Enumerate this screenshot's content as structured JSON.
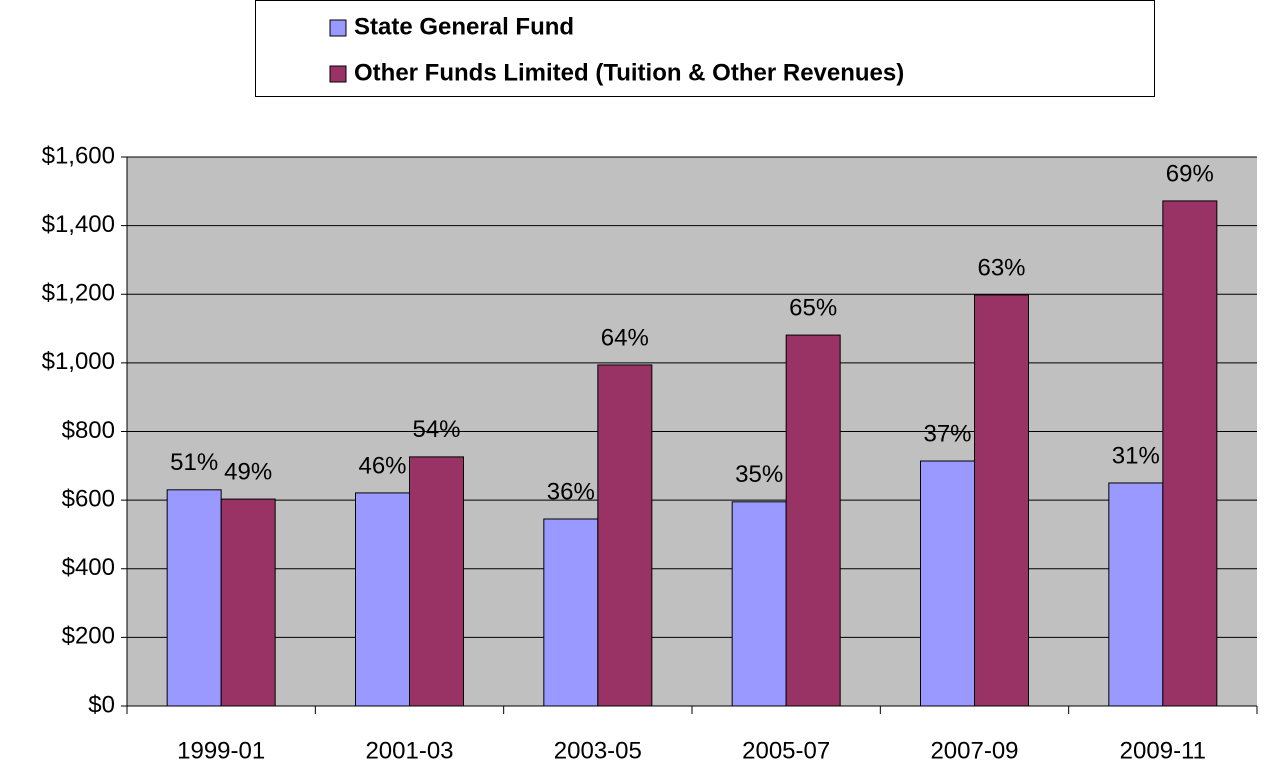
{
  "chart_data": {
    "type": "bar",
    "categories": [
      "1999-01",
      "2001-03",
      "2003-05",
      "2005-07",
      "2007-09",
      "2009-11"
    ],
    "series": [
      {
        "name": "State General Fund",
        "color": "#9999ff",
        "values": [
          630,
          621,
          545,
          595,
          714,
          650
        ],
        "labels": [
          "51%",
          "46%",
          "36%",
          "35%",
          "37%",
          "31%"
        ]
      },
      {
        "name": "Other Funds Limited (Tuition & Other Revenues)",
        "color": "#993366",
        "values": [
          603,
          726,
          994,
          1081,
          1198,
          1472
        ],
        "labels": [
          "49%",
          "54%",
          "64%",
          "65%",
          "63%",
          "69%"
        ]
      }
    ],
    "ylim": [
      0,
      1600
    ],
    "yticks": [
      {
        "value": 0,
        "label": "$0"
      },
      {
        "value": 200,
        "label": "$200"
      },
      {
        "value": 400,
        "label": "$400"
      },
      {
        "value": 600,
        "label": "$600"
      },
      {
        "value": 800,
        "label": "$800"
      },
      {
        "value": 1000,
        "label": "$1,000"
      },
      {
        "value": 1200,
        "label": "$1,200"
      },
      {
        "value": 1400,
        "label": "$1,400"
      },
      {
        "value": 1600,
        "label": "$1,600"
      }
    ],
    "grid": true,
    "legend": "top"
  }
}
